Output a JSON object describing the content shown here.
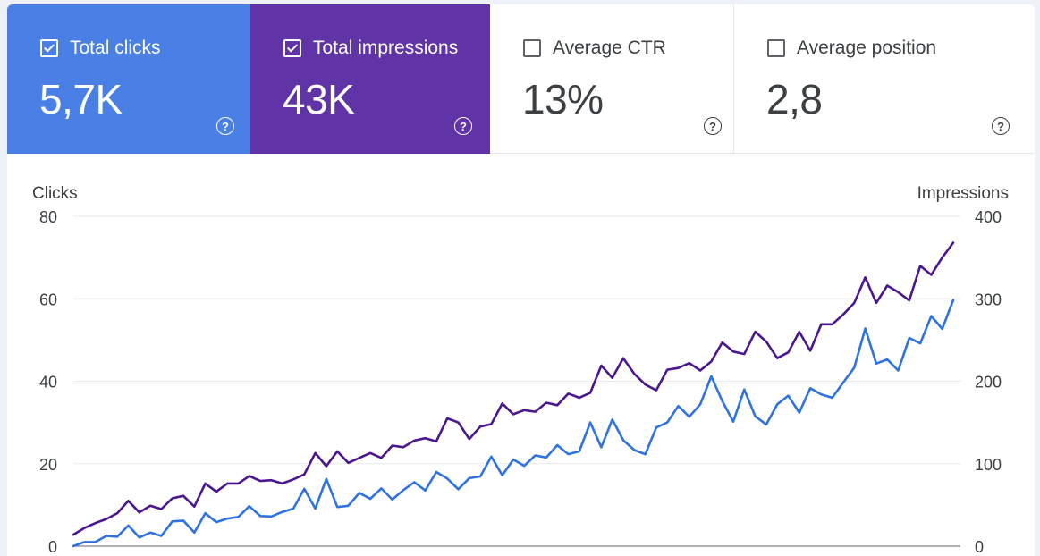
{
  "metrics": [
    {
      "label": "Total clicks",
      "value": "5,7K",
      "checked": true,
      "color": "#4a7fe6"
    },
    {
      "label": "Total impressions",
      "value": "43K",
      "checked": true,
      "color": "#6033a6"
    },
    {
      "label": "Average CTR",
      "value": "13%",
      "checked": false
    },
    {
      "label": "Average position",
      "value": "2,8",
      "checked": false
    }
  ],
  "help_glyph": "?",
  "chart_data": {
    "type": "line",
    "y_left_label": "Clicks",
    "y_right_label": "Impressions",
    "y_left_range": [
      0,
      80
    ],
    "y_right_range": [
      0,
      400
    ],
    "y_left_ticks": [
      "0",
      "20",
      "40",
      "60",
      "80"
    ],
    "y_right_ticks": [
      "0",
      "100",
      "200",
      "300",
      "400"
    ],
    "grid": true,
    "series": [
      {
        "axis": "left",
        "color": "#2f72e0",
        "values": [
          0,
          1,
          1,
          2.5,
          2.3,
          5,
          2.1,
          3.3,
          2.5,
          6,
          6.2,
          3.3,
          8,
          5.8,
          6.7,
          7.1,
          9.7,
          7.3,
          7.2,
          8.3,
          9.1,
          13.9,
          9.1,
          16.3,
          9.5,
          9.8,
          12.9,
          11.5,
          14,
          11.3,
          13.6,
          15.5,
          13.5,
          18,
          16.4,
          13.8,
          16.5,
          16.9,
          21.7,
          17.2,
          21,
          19.5,
          22,
          21.5,
          24.5,
          22.3,
          23,
          30,
          24,
          30.7,
          25.7,
          23.3,
          22.3,
          28.8,
          30,
          34,
          31.4,
          34.4,
          41.2,
          35.2,
          30.2,
          38,
          31.5,
          29.5,
          34.4,
          36.5,
          32.4,
          38.3,
          36.8,
          36,
          39.7,
          43.3,
          52.8,
          44.3,
          45.3,
          42.6,
          50.5,
          49.2,
          55.8,
          52.7,
          59.7
        ]
      },
      {
        "axis": "right",
        "color": "#4b1790",
        "values": [
          14,
          22,
          28,
          33,
          40,
          55,
          41,
          49,
          45,
          58,
          61,
          48,
          76,
          66,
          76,
          76,
          85,
          79,
          80,
          76,
          81,
          87,
          113,
          97,
          115,
          101,
          107,
          113,
          107,
          122,
          120,
          128,
          131,
          127,
          155,
          150,
          130,
          145,
          148,
          173,
          160,
          165,
          163,
          174,
          171,
          185,
          180,
          186,
          219,
          204,
          228,
          209,
          196,
          189,
          214,
          216,
          222,
          213,
          224,
          247,
          236,
          233,
          260,
          248,
          228,
          235,
          260,
          237,
          269,
          269,
          281,
          295,
          326,
          295,
          316,
          308,
          298,
          340,
          329,
          350,
          368
        ]
      }
    ]
  }
}
